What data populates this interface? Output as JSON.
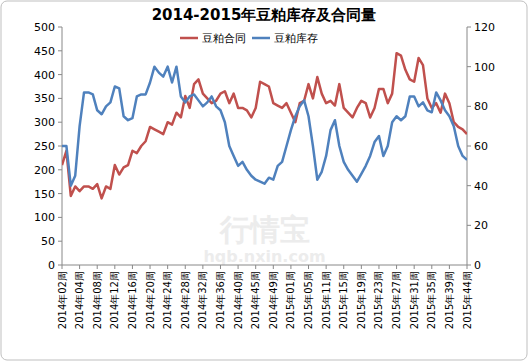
{
  "chart_data": {
    "type": "line",
    "title": "2014-2015年豆粕库存及合同量",
    "annotations": [
      "行情宝",
      "hqb.nxin.com"
    ],
    "categories": [
      "2014年02周",
      null,
      null,
      null,
      "2014年04周",
      null,
      null,
      null,
      "2014年08周",
      null,
      null,
      null,
      "2014年12周",
      null,
      null,
      null,
      "2014年16周",
      null,
      null,
      null,
      "2014年20周",
      null,
      null,
      null,
      "2014年24周",
      null,
      null,
      null,
      "2014年28周",
      null,
      null,
      null,
      "2014年32周",
      null,
      null,
      null,
      "2014年36周",
      null,
      null,
      null,
      "2014年40周",
      null,
      null,
      null,
      "2014年45周",
      null,
      null,
      null,
      "2014年49周",
      null,
      null,
      null,
      "2015年01周",
      null,
      null,
      null,
      "2015年05周",
      null,
      null,
      null,
      "2015年11周",
      null,
      null,
      null,
      "2015年15周",
      null,
      null,
      null,
      "2015年19周",
      null,
      null,
      null,
      "2015年23周",
      null,
      null,
      null,
      "2015年27周",
      null,
      null,
      null,
      "2015年31周",
      null,
      null,
      null,
      "2015年35周",
      null,
      null,
      null,
      "2015年39周",
      null,
      null,
      null,
      "2015年44周"
    ],
    "series": [
      {
        "name": "豆粕合同",
        "color": "#c0504d",
        "axis": "y",
        "values": [
          210,
          240,
          145,
          165,
          155,
          165,
          165,
          160,
          170,
          140,
          165,
          160,
          210,
          190,
          205,
          210,
          240,
          235,
          250,
          260,
          290,
          285,
          280,
          275,
          300,
          295,
          320,
          310,
          355,
          330,
          380,
          390,
          360,
          350,
          340,
          345,
          360,
          365,
          340,
          360,
          330,
          330,
          325,
          310,
          330,
          385,
          380,
          375,
          340,
          335,
          330,
          340,
          320,
          300,
          340,
          345,
          380,
          350,
          395,
          360,
          340,
          345,
          335,
          380,
          330,
          320,
          310,
          330,
          345,
          340,
          310,
          330,
          370,
          370,
          340,
          360,
          445,
          440,
          410,
          390,
          385,
          435,
          420,
          350,
          330,
          340,
          320,
          360,
          340,
          300,
          290,
          285,
          275
        ]
      },
      {
        "name": "豆粕库存",
        "color": "#4f81bd",
        "axis": "y2",
        "values": [
          60,
          60,
          40,
          45,
          70,
          87,
          87,
          86,
          78,
          76,
          80,
          82,
          90,
          89,
          75,
          73,
          74,
          85,
          86,
          86,
          92,
          100,
          97,
          95,
          100,
          92,
          100,
          85,
          82,
          85,
          86,
          83,
          80,
          82,
          85,
          80,
          78,
          72,
          60,
          55,
          50,
          52,
          48,
          45,
          43,
          42,
          41,
          44,
          43,
          50,
          52,
          60,
          68,
          75,
          80,
          83,
          75,
          60,
          43,
          47,
          55,
          68,
          73,
          60,
          52,
          48,
          45,
          42,
          46,
          50,
          55,
          62,
          65,
          55,
          60,
          72,
          75,
          73,
          75,
          85,
          85,
          80,
          82,
          78,
          77,
          87,
          83,
          78,
          75,
          70,
          60,
          55,
          53
        ]
      }
    ],
    "ylim": [
      0,
      500
    ],
    "yticks": [
      0,
      50,
      100,
      150,
      200,
      250,
      300,
      350,
      400,
      450,
      500
    ],
    "y2lim": [
      0,
      120
    ],
    "y2ticks": [
      0,
      20,
      40,
      60,
      80,
      100,
      120
    ],
    "grid": false,
    "legend": "top"
  }
}
